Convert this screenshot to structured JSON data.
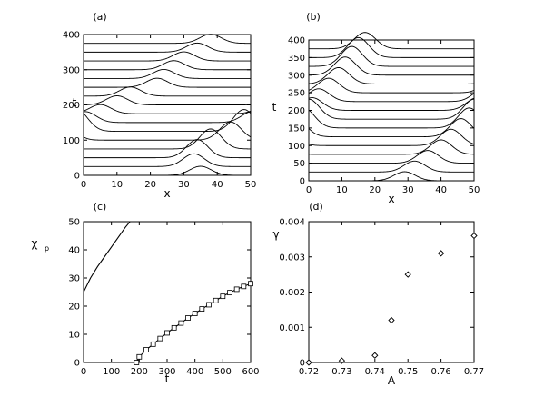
{
  "chart_data": [
    {
      "panel_label": "(a)",
      "type": "line",
      "xlabel": "x",
      "ylabel": "t",
      "xlim": [
        0,
        50
      ],
      "ylim": [
        0,
        400
      ],
      "xticks": [
        0,
        10,
        20,
        30,
        40,
        50
      ],
      "yticks": [
        0,
        100,
        200,
        300,
        400
      ],
      "series": [
        {
          "t": 0,
          "peak_x": 35.0,
          "peak_height": 10
        },
        {
          "t": 25,
          "peak_x": 33.0,
          "peak_height": 14
        },
        {
          "t": 50,
          "peak_x": 34.0,
          "peak_height": 20
        },
        {
          "t": 75,
          "peak_x": 38.0,
          "peak_height": 22
        },
        {
          "t": 100,
          "peak_x": 44.0,
          "peak_height": 20
        },
        {
          "t": 125,
          "peak_x": 48.0,
          "peak_height": 24
        },
        {
          "t": 150,
          "peak_x": 0.5,
          "peak_height": 12
        },
        {
          "t": 175,
          "peak_x": 5.0,
          "peak_height": 10
        },
        {
          "t": 200,
          "peak_x": 10.0,
          "peak_height": 10
        },
        {
          "t": 225,
          "peak_x": 14.0,
          "peak_height": 10
        },
        {
          "t": 250,
          "peak_x": 22.0,
          "peak_height": 10
        },
        {
          "t": 275,
          "peak_x": 24.0,
          "peak_height": 10
        },
        {
          "t": 300,
          "peak_x": 27.0,
          "peak_height": 10
        },
        {
          "t": 325,
          "peak_x": 30.0,
          "peak_height": 10
        },
        {
          "t": 350,
          "peak_x": 34.0,
          "peak_height": 10
        },
        {
          "t": 375,
          "peak_x": 38.0,
          "peak_height": 10
        }
      ]
    },
    {
      "panel_label": "(b)",
      "type": "line",
      "xlabel": "x",
      "ylabel": "t",
      "xlim": [
        0,
        50
      ],
      "ylim": [
        0,
        400
      ],
      "xticks": [
        0,
        10,
        20,
        30,
        40,
        50
      ],
      "yticks": [
        0,
        50,
        100,
        150,
        200,
        250,
        300,
        350,
        400
      ],
      "series": [
        {
          "t": 0,
          "peak_x": 29.0,
          "peak_height": 10
        },
        {
          "t": 25,
          "peak_x": 32.0,
          "peak_height": 12
        },
        {
          "t": 50,
          "peak_x": 36.0,
          "peak_height": 14
        },
        {
          "t": 75,
          "peak_x": 40.0,
          "peak_height": 16
        },
        {
          "t": 100,
          "peak_x": 43.0,
          "peak_height": 18
        },
        {
          "t": 125,
          "peak_x": 46.0,
          "peak_height": 20
        },
        {
          "t": 150,
          "peak_x": 48.5,
          "peak_height": 22
        },
        {
          "t": 175,
          "peak_x": 50.0,
          "peak_height": 22
        },
        {
          "t": 200,
          "peak_x": 1.0,
          "peak_height": 14
        },
        {
          "t": 225,
          "peak_x": 3.0,
          "peak_height": 14
        },
        {
          "t": 250,
          "peak_x": 6.0,
          "peak_height": 16
        },
        {
          "t": 275,
          "peak_x": 9.0,
          "peak_height": 18
        },
        {
          "t": 300,
          "peak_x": 11.0,
          "peak_height": 20
        },
        {
          "t": 325,
          "peak_x": 13.0,
          "peak_height": 22
        },
        {
          "t": 350,
          "peak_x": 15.0,
          "peak_height": 22
        },
        {
          "t": 375,
          "peak_x": 17.0,
          "peak_height": 18
        }
      ]
    },
    {
      "panel_label": "(c)",
      "type": "line",
      "xlabel": "t",
      "ylabel": "χ",
      "ylabel_subscript": "p",
      "xlim": [
        0,
        600
      ],
      "ylim": [
        0,
        50
      ],
      "xticks": [
        0,
        100,
        200,
        300,
        400,
        500,
        600
      ],
      "yticks": [
        0,
        10,
        20,
        30,
        40,
        50
      ],
      "series": [
        {
          "x": [
            0,
            25,
            50,
            75,
            100,
            125,
            150,
            175
          ],
          "y": [
            25,
            30,
            34,
            37.5,
            41,
            44.5,
            48,
            51
          ],
          "marker": "line"
        },
        {
          "x": [
            190,
            200,
            225,
            250,
            275,
            300,
            325,
            350,
            375,
            400,
            425,
            450,
            475,
            500,
            525,
            550,
            575,
            600
          ],
          "y": [
            0,
            2,
            4.5,
            6.5,
            8.5,
            10.5,
            12.3,
            14,
            15.8,
            17.4,
            19,
            20.5,
            22,
            23.5,
            24.8,
            26,
            27,
            28
          ],
          "marker": "square"
        }
      ]
    },
    {
      "panel_label": "(d)",
      "type": "scatter",
      "xlabel": "A",
      "ylabel": "γ",
      "xlim": [
        0.72,
        0.77
      ],
      "ylim": [
        0,
        0.004
      ],
      "xticks": [
        "0.72",
        "0.73",
        "0.74",
        "0.75",
        "0.76",
        "0.77"
      ],
      "yticks": [
        "0",
        "0.001",
        "0.002",
        "0.003",
        "0.004"
      ],
      "series": [
        {
          "x": [
            0.72,
            0.73,
            0.74,
            0.745,
            0.75,
            0.76,
            0.77
          ],
          "y": [
            0.0,
            5e-05,
            0.0002,
            0.0012,
            0.0025,
            0.0031,
            0.0036
          ],
          "marker": "diamond"
        }
      ]
    }
  ]
}
